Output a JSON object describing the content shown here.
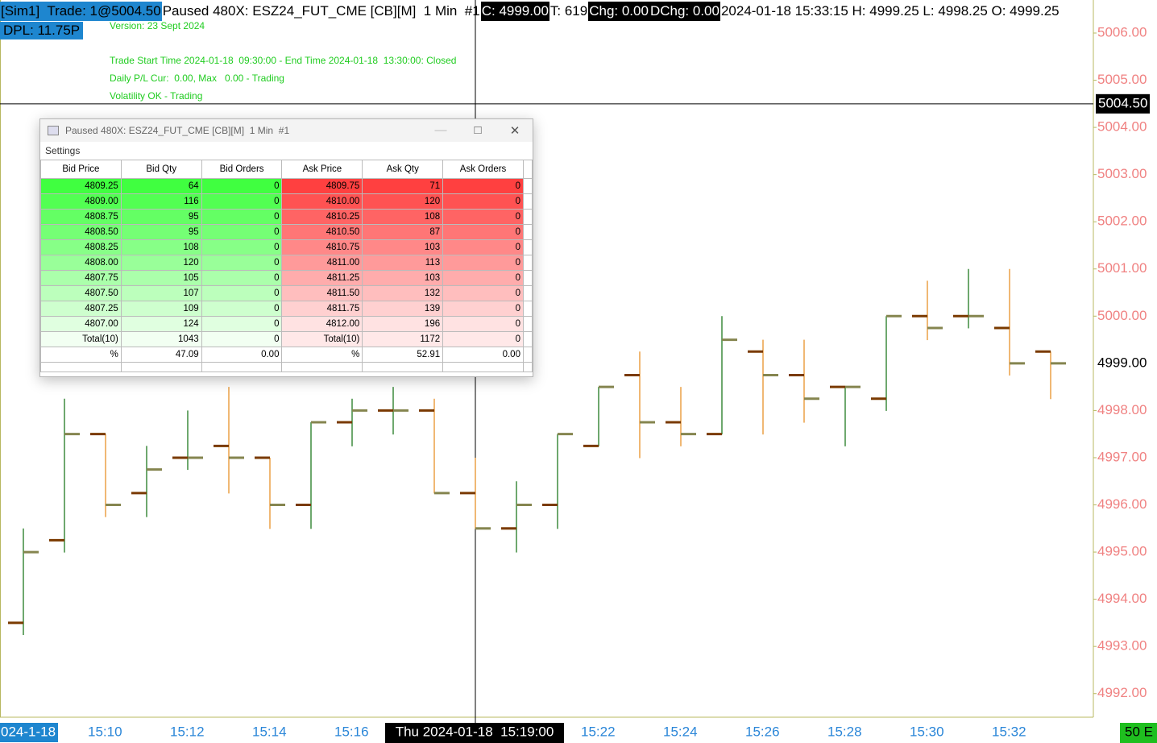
{
  "header": {
    "account": "[Sim1]  Trade: 1@5004.50",
    "chart_name": "Paused 480X: ESZ24_FUT_CME [CB][M]  1 Min  #1",
    "close": "C: 4999.00",
    "trades": "T: 619",
    "change": "Chg: 0.00",
    "daily_change": "DChg: 0.00",
    "stats": "2024-01-18 15:33:15 H: 4999.25 L: 4998.25 O: 4999.25",
    "dpl": "DPL: 11.75P"
  },
  "study_text": [
    "Version: 23 Sept 2024",
    "Trade Start Time 2024-01-18  09:30:00 - End Time 2024-01-18  13:30:00: Closed",
    "Daily P/L Cur:  0.00, Max   0.00 - Trading",
    "Volatility OK - Trading"
  ],
  "chart_data": {
    "type": "ohlc",
    "categories": [
      "024-1-18",
      null,
      "15:10",
      null,
      "15:12",
      null,
      "15:14",
      null,
      "15:16",
      null,
      null,
      null,
      null,
      null,
      "15:22",
      null,
      "15:24",
      null,
      "15:26",
      null,
      "15:28",
      null,
      "15:30",
      null,
      "15:32",
      null
    ],
    "open": [
      4993.5,
      4995.25,
      4997.5,
      4996.25,
      4997,
      4997.25,
      4997,
      4996,
      4997.75,
      4998,
      4998,
      4996.25,
      4995.5,
      4996,
      4997.25,
      4998.75,
      4997.75,
      4997.5,
      4999.25,
      4998.75,
      4998.5,
      4998.25,
      5000,
      5000,
      4999.75,
      4999.25
    ],
    "high": [
      4995.5,
      4998.25,
      4997.5,
      4997.25,
      4998,
      4998.5,
      4997,
      4997.75,
      4998.25,
      4998.5,
      4998.25,
      4997,
      4996.5,
      4997.5,
      4998.5,
      4999.25,
      4998.5,
      5000,
      4999.5,
      4999.5,
      4998.5,
      5000,
      5000.75,
      5001,
      5001,
      4999.25
    ],
    "low": [
      4993.25,
      4995,
      4995.75,
      4995.75,
      4996.75,
      4996.25,
      4995.5,
      4995.5,
      4997.25,
      4997.5,
      4996.25,
      4995.5,
      4995,
      4995.5,
      4997.25,
      4997,
      4997.25,
      4997.5,
      4997.5,
      4997.75,
      4997.25,
      4998,
      4999.5,
      4999.75,
      4998.75,
      4998.25
    ],
    "close": [
      4995,
      4997.5,
      4996,
      4996.75,
      4997,
      4997,
      4996,
      4997.75,
      4998,
      4998,
      4996.25,
      4995.5,
      4996,
      4997.5,
      4998.5,
      4997.75,
      4997.5,
      4999.5,
      4998.75,
      4998.25,
      4998.5,
      5000,
      4999.75,
      5000,
      4999,
      4999
    ],
    "up_color": "#1f7a1f",
    "down_color": "#e8922a",
    "open_tick_color": "#7a3a00",
    "close_tick_color": "#85854f",
    "ylim": [
      4991.5,
      5006.7
    ],
    "yticks": [
      {
        "value": 5006,
        "label": "5006.00"
      },
      {
        "value": 5005,
        "label": "5005.00"
      },
      {
        "value": 5004,
        "label": "5004.00"
      },
      {
        "value": 5003,
        "label": "5003.00"
      },
      {
        "value": 5002,
        "label": "5002.00"
      },
      {
        "value": 5001,
        "label": "5001.00"
      },
      {
        "value": 5000,
        "label": "5000.00"
      },
      {
        "value": 4998,
        "label": "4998.00"
      },
      {
        "value": 4997,
        "label": "4997.00"
      },
      {
        "value": 4996,
        "label": "4996.00"
      },
      {
        "value": 4995,
        "label": "4995.00"
      },
      {
        "value": 4994,
        "label": "4994.00"
      },
      {
        "value": 4993,
        "label": "4993.00"
      },
      {
        "value": 4992,
        "label": "4992.00"
      }
    ],
    "last_price": {
      "value": 4999,
      "label": "4999.00"
    },
    "crosshair": {
      "value": 5004.5,
      "label": "5004.50",
      "time_label": "Thu 2024-01-18  15:19:00"
    },
    "corner_label": "50 E"
  },
  "dom_window": {
    "title": "Paused 480X: ESZ24_FUT_CME [CB][M]  1 Min  #1",
    "menu": "Settings",
    "table": {
      "columns": [
        "Bid Price",
        "Bid Qty",
        "Bid Orders",
        "Ask Price",
        "Ask Qty",
        "Ask Orders"
      ],
      "rows": [
        [
          "4809.25",
          "64",
          "0",
          "4809.75",
          "71",
          "0"
        ],
        [
          "4809.00",
          "116",
          "0",
          "4810.00",
          "120",
          "0"
        ],
        [
          "4808.75",
          "95",
          "0",
          "4810.25",
          "108",
          "0"
        ],
        [
          "4808.50",
          "95",
          "0",
          "4810.50",
          "87",
          "0"
        ],
        [
          "4808.25",
          "108",
          "0",
          "4810.75",
          "103",
          "0"
        ],
        [
          "4808.00",
          "120",
          "0",
          "4811.00",
          "113",
          "0"
        ],
        [
          "4807.75",
          "105",
          "0",
          "4811.25",
          "103",
          "0"
        ],
        [
          "4807.50",
          "107",
          "0",
          "4811.50",
          "132",
          "0"
        ],
        [
          "4807.25",
          "109",
          "0",
          "4811.75",
          "139",
          "0"
        ],
        [
          "4807.00",
          "124",
          "0",
          "4812.00",
          "196",
          "0"
        ],
        [
          "Total(10)",
          "1043",
          "0",
          "Total(10)",
          "1172",
          "0"
        ],
        [
          "%",
          "47.09",
          "0.00",
          "%",
          "52.91",
          "0.00"
        ]
      ]
    }
  }
}
